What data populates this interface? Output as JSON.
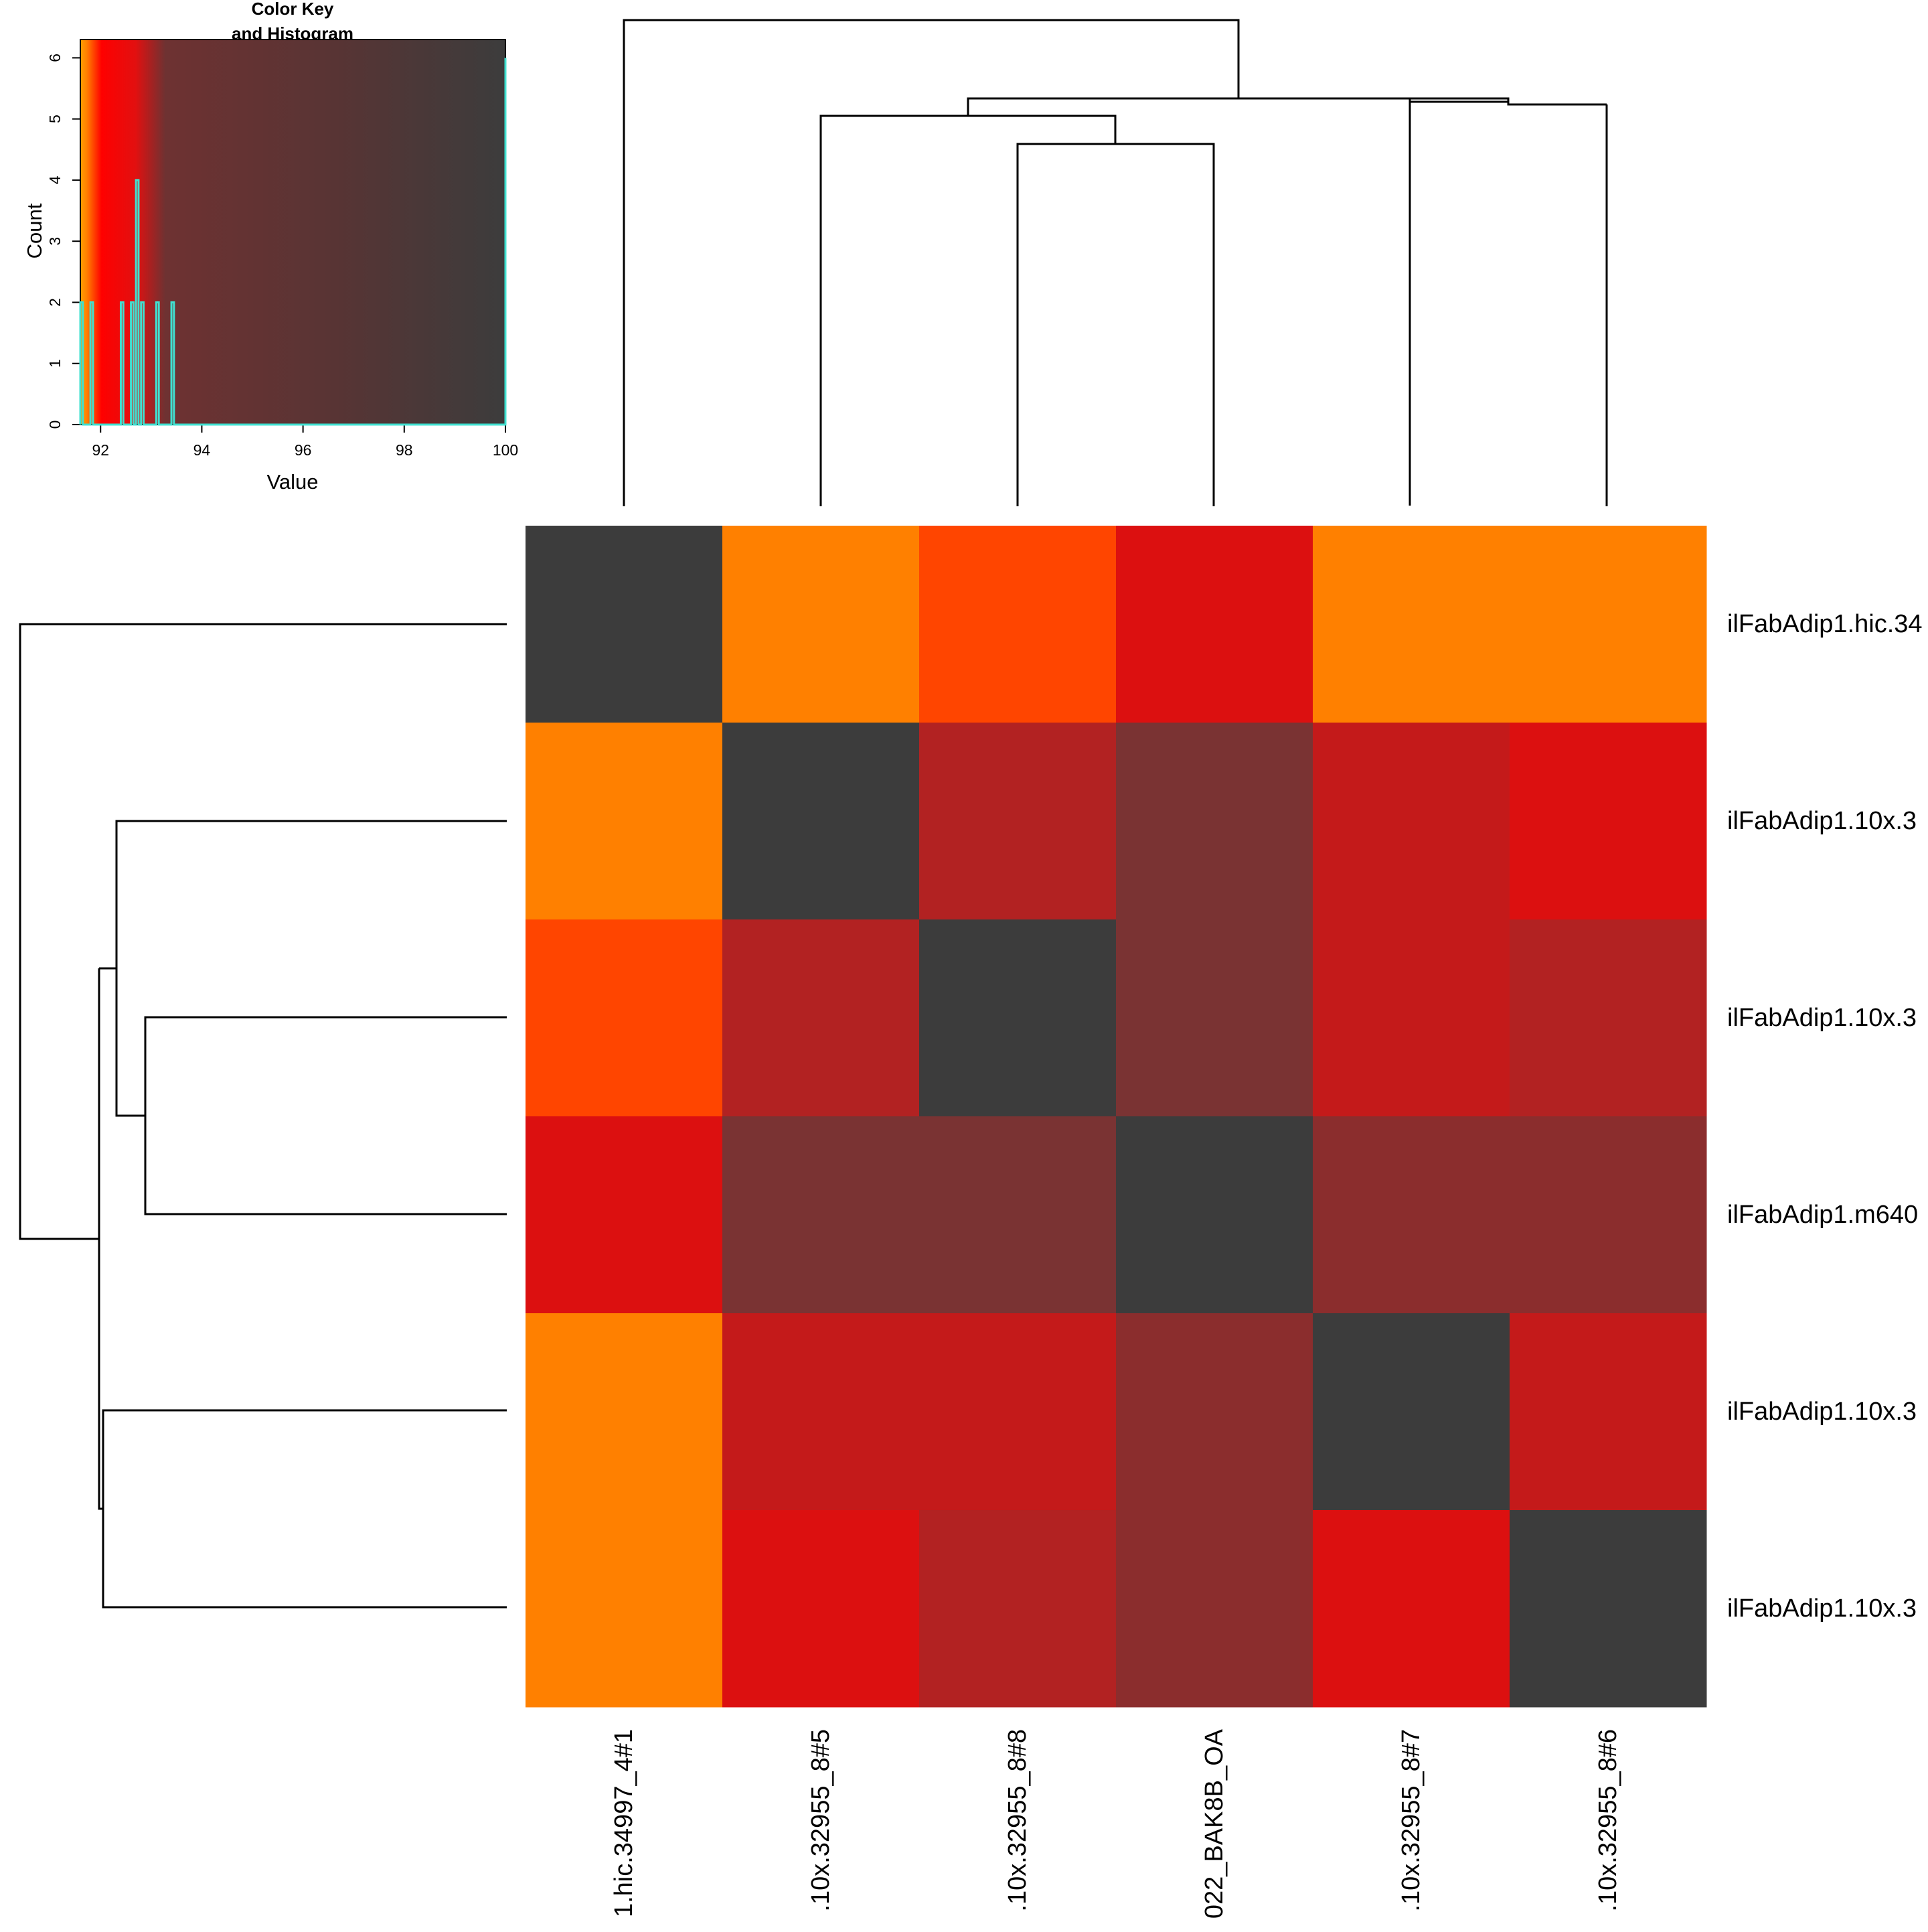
{
  "chart_data": [
    {
      "type": "heatmap",
      "row_labels": [
        "ilFabAdip1.hic.34",
        "ilFabAdip1.10x.3",
        "ilFabAdip1.10x.3",
        "ilFabAdip1.m640",
        "ilFabAdip1.10x.3",
        "ilFabAdip1.10x.3"
      ],
      "col_labels": [
        "1.hic.34997_4#1",
        ".10x.32955_8#5",
        ".10x.32955_8#8",
        "022_BAK8B_OA",
        ".10x.32955_8#7",
        ".10x.32955_8#6"
      ],
      "values": [
        [
          100,
          91.6,
          91.9,
          92.6,
          91.6,
          91.6
        ],
        [
          91.6,
          100,
          93.0,
          93.9,
          92.7,
          92.6
        ],
        [
          91.9,
          93.0,
          100,
          94.3,
          92.7,
          92.9
        ],
        [
          92.6,
          93.9,
          94.3,
          100,
          93.4,
          93.5
        ],
        [
          91.6,
          92.7,
          92.7,
          93.4,
          100,
          92.7
        ],
        [
          91.6,
          92.6,
          92.9,
          93.5,
          92.6,
          100
        ]
      ],
      "colors": [
        "#ff8000",
        "#ff4500",
        "#dc1010",
        "#c41a1a",
        "#b22222",
        "#8b2d2d",
        "#7a3333",
        "#3c3c3c"
      ],
      "value_range": [
        91.5,
        100
      ],
      "row_dendrogram": "left",
      "col_dendrogram": "top"
    },
    {
      "type": "bar",
      "title": "Color Key\nand Histogram",
      "title_lines": [
        "Color Key",
        "and Histogram"
      ],
      "xlabel": "Value",
      "ylabel": "Count",
      "xlim": [
        91.6,
        100
      ],
      "ylim": [
        0,
        6.3
      ],
      "x_ticks": [
        "92",
        "94",
        "96",
        "98",
        "100"
      ],
      "y_ticks": [
        "0",
        "1",
        "2",
        "3",
        "4",
        "5",
        "6"
      ],
      "histogram_line_color": "#40e0d0",
      "bins": [
        {
          "x": 91.6,
          "count": 2
        },
        {
          "x": 91.8,
          "count": 2
        },
        {
          "x": 92.4,
          "count": 2
        },
        {
          "x": 92.6,
          "count": 2
        },
        {
          "x": 92.7,
          "count": 4
        },
        {
          "x": 92.8,
          "count": 2
        },
        {
          "x": 93.1,
          "count": 2
        },
        {
          "x": 93.4,
          "count": 2
        },
        {
          "x": 100,
          "count": 6
        }
      ]
    }
  ]
}
